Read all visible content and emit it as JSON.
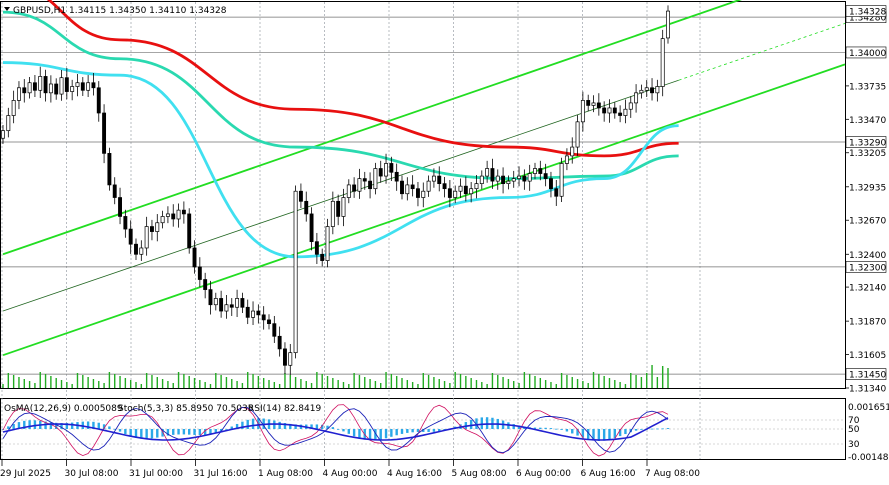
{
  "header": {
    "symbol_line": "GBPUSD,H1  1.34115 1.34350 1.34110 1.34328"
  },
  "indicator_header": {
    "osma": "OsMA(12,26,9) 0.0005089",
    "stoch": "Stoch(5,3,3) 85.8950 70.5035",
    "rsi": "RSI(14) 82.8419"
  },
  "colors": {
    "bull_candle": "#ffffff",
    "bear_candle": "#000000",
    "ma_red": "#e81010",
    "ma_teal": "#2ad9b0",
    "ma_cyan": "#40e0f0",
    "channel_green": "#22dd22",
    "osma_hist": "#2aa8e8",
    "stoch_main": "#1b22b8",
    "stoch_signal": "#d01060",
    "rsi_line": "#2020d0",
    "volume": "#22aa22"
  },
  "price_axis": {
    "ticks": [
      "1.34280",
      "1.34000",
      "1.33735",
      "1.33470",
      "1.33290",
      "1.33205",
      "1.32935",
      "1.32670",
      "1.32400",
      "1.32300",
      "1.32140",
      "1.31870",
      "1.31605",
      "1.31450",
      "1.31340"
    ],
    "highlighted": [
      "1.34328",
      "1.34280",
      "1.34000",
      "1.33290",
      "1.32300",
      "1.31450"
    ],
    "current_price": "1.34328"
  },
  "sub_axis": {
    "top": "0.0016514",
    "bottom": "-0.0014808",
    "levels": [
      "70",
      "50",
      "30"
    ]
  },
  "time_axis": [
    "29 Jul 2025",
    "30 Jul 08:00",
    "31 Jul 00:00",
    "31 Jul 16:00",
    "1 Aug 08:00",
    "4 Aug 00:00",
    "4 Aug 16:00",
    "5 Aug 08:00",
    "6 Aug 00:00",
    "6 Aug 16:00",
    "7 Aug 08:00"
  ],
  "chart_data": {
    "type": "candlestick",
    "symbol": "GBPUSD",
    "timeframe": "H1",
    "ylim": [
      1.3134,
      1.344
    ],
    "ohlc_last": {
      "open": 1.34115,
      "high": 1.3435,
      "low": 1.3411,
      "close": 1.34328
    },
    "close_series": [
      1.3338,
      1.335,
      1.3362,
      1.3372,
      1.3368,
      1.3376,
      1.337,
      1.3381,
      1.3368,
      1.3375,
      1.3367,
      1.338,
      1.3369,
      1.3373,
      1.3376,
      1.337,
      1.3376,
      1.3372,
      1.3352,
      1.332,
      1.3295,
      1.3285,
      1.327,
      1.326,
      1.3248,
      1.324,
      1.3245,
      1.3262,
      1.3258,
      1.3265,
      1.327,
      1.3272,
      1.3268,
      1.3275,
      1.3272,
      1.3245,
      1.323,
      1.322,
      1.3212,
      1.32,
      1.3205,
      1.3195,
      1.32,
      1.3198,
      1.3205,
      1.3198,
      1.319,
      1.3195,
      1.3192,
      1.3188,
      1.3185,
      1.3175,
      1.3165,
      1.3152,
      1.3162,
      1.329,
      1.3282,
      1.3272,
      1.325,
      1.324,
      1.3235,
      1.3262,
      1.3282,
      1.327,
      1.3285,
      1.3295,
      1.329,
      1.33,
      1.3298,
      1.3292,
      1.3308,
      1.3302,
      1.3312,
      1.3305,
      1.3298,
      1.3288,
      1.3295,
      1.3292,
      1.3285,
      1.329,
      1.3298,
      1.3302,
      1.3296,
      1.3292,
      1.3285,
      1.329,
      1.3294,
      1.3288,
      1.3292,
      1.3296,
      1.3302,
      1.3308,
      1.3298,
      1.3302,
      1.3296,
      1.3298,
      1.33,
      1.3302,
      1.3298,
      1.3304,
      1.3308,
      1.3304,
      1.33,
      1.3292,
      1.3286,
      1.3312,
      1.3318,
      1.3325,
      1.3345,
      1.3362,
      1.3358,
      1.336,
      1.3356,
      1.3352,
      1.3356,
      1.3352,
      1.335,
      1.3355,
      1.336,
      1.3368,
      1.337,
      1.3372,
      1.3368,
      1.3373,
      1.3411,
      1.34328
    ],
    "moving_averages": [
      {
        "color": "red",
        "points": [
          [
            0,
            1.3455
          ],
          [
            22,
            1.341
          ],
          [
            55,
            1.3355
          ],
          [
            95,
            1.3325
          ],
          [
            113,
            1.3318
          ],
          [
            127,
            1.3328
          ]
        ]
      },
      {
        "color": "teal",
        "points": [
          [
            0,
            1.3432
          ],
          [
            22,
            1.3395
          ],
          [
            55,
            1.3325
          ],
          [
            95,
            1.33
          ],
          [
            113,
            1.3302
          ],
          [
            127,
            1.3318
          ]
        ]
      },
      {
        "color": "cyan",
        "points": [
          [
            0,
            1.3392
          ],
          [
            22,
            1.3382
          ],
          [
            55,
            1.3238
          ],
          [
            95,
            1.3285
          ],
          [
            113,
            1.33
          ],
          [
            127,
            1.3342
          ]
        ]
      }
    ],
    "channel": {
      "upper": [
        [
          0,
          1.324
        ],
        [
          127,
          1.3425
        ]
      ],
      "middle": [
        [
          0,
          1.3195
        ],
        [
          127,
          1.3378
        ]
      ],
      "lower": [
        [
          0,
          1.316
        ],
        [
          127,
          1.3345
        ]
      ]
    },
    "levels": [
      1.3428,
      1.34,
      1.3329,
      1.323,
      1.3145
    ]
  }
}
